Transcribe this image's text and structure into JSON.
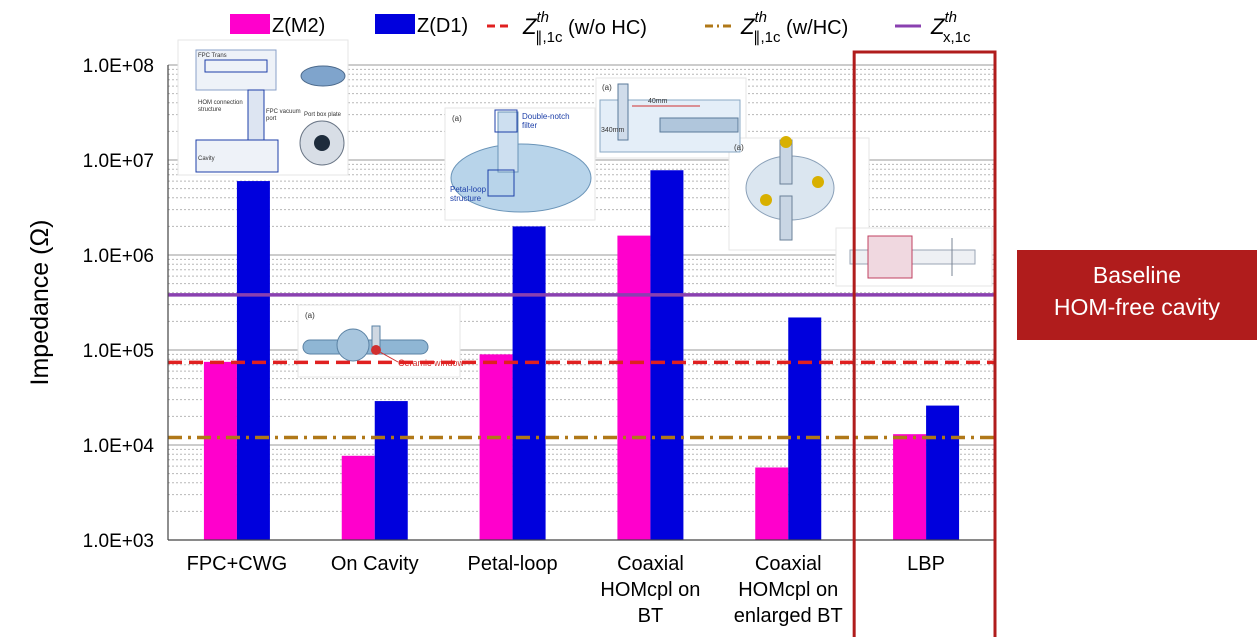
{
  "chart_data": {
    "type": "bar",
    "scale": "log",
    "ylabel": "Impedance (Ω)",
    "ylim": [
      1000,
      100000000
    ],
    "yticks": [
      "1.0E+03",
      "1.0E+04",
      "1.0E+05",
      "1.0E+06",
      "1.0E+07",
      "1.0E+08"
    ],
    "grid": true,
    "legend_position": "top",
    "categories": [
      [
        "FPC+CWG"
      ],
      [
        "On Cavity"
      ],
      [
        "Petal-loop"
      ],
      [
        "Coaxial",
        "HOMcpl on",
        "BT"
      ],
      [
        "Coaxial",
        "HOMcpl on",
        "enlarged BT"
      ],
      [
        "LBP"
      ]
    ],
    "series": [
      {
        "name": "Z(M2)",
        "color": "#ff00cc",
        "values": [
          75000,
          7700,
          90000,
          1600000,
          5800,
          13000
        ]
      },
      {
        "name": "Z(D1)",
        "color": "#0000dd",
        "values": [
          6000000,
          29000,
          2000000,
          7800000,
          220000,
          26000
        ]
      }
    ],
    "thresholds": [
      {
        "name_main": "Z",
        "name_sup": "th",
        "name_sub": "∥,1c",
        "name_suffix": " (w/o HC)",
        "value": 74000,
        "color": "#e02020",
        "style": "dashed"
      },
      {
        "name_main": "Z",
        "name_sup": "th",
        "name_sub": "∥,1c",
        "name_suffix": " (w/HC)",
        "value": 12000,
        "color": "#b07818",
        "style": "dashdot"
      },
      {
        "name_main": "Z",
        "name_sup": "th",
        "name_sub": "x,1c",
        "name_suffix": "",
        "value": 380000,
        "color": "#8a40b0",
        "style": "solid"
      }
    ],
    "highlight": {
      "category_index": 5,
      "color": "#b01c1c",
      "callout_lines": [
        "Baseline",
        "HOM-free cavity"
      ]
    },
    "inset_labels": {
      "fpc": [
        "FPC Trans",
        "HOM connection",
        "structure",
        "FPC vacuum",
        "port",
        "Cavity",
        "Port box plate"
      ],
      "oncavity": [
        "(a)",
        "Ceramic window"
      ],
      "petal": [
        "(a)",
        "Double-notch",
        "filter",
        "Petal-loop",
        "structure"
      ],
      "coax": [
        "(a)",
        "40mm",
        "340mm"
      ],
      "coax2": [
        "(a)"
      ]
    }
  }
}
